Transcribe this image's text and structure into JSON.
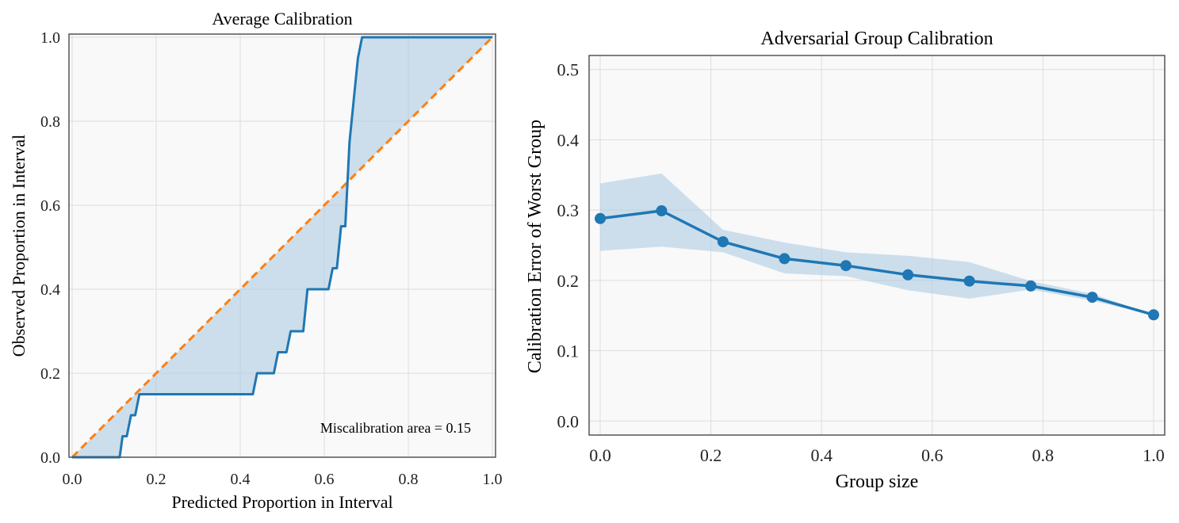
{
  "chart_data": [
    {
      "type": "line",
      "title": "Average Calibration",
      "xlabel": "Predicted Proportion in Interval",
      "ylabel": "Observed Proportion in Interval",
      "xlim": [
        0,
        1
      ],
      "ylim": [
        0,
        1
      ],
      "xticks": [
        "0.0",
        "0.2",
        "0.4",
        "0.6",
        "0.8",
        "1.0"
      ],
      "yticks": [
        "0.0",
        "0.2",
        "0.4",
        "0.6",
        "0.8",
        "1.0"
      ],
      "grid": true,
      "annotation": "Miscalibration area = 0.15",
      "ideal_line": {
        "x": [
          0,
          1
        ],
        "y": [
          0,
          1
        ],
        "style": "dashed",
        "color": "#ff7f0e"
      },
      "series": [
        {
          "x": [
            0,
            0.113,
            0.12,
            0.13,
            0.14,
            0.15,
            0.16,
            0.2,
            0.3,
            0.4,
            0.43,
            0.44,
            0.48,
            0.49,
            0.51,
            0.52,
            0.55,
            0.56,
            0.6,
            0.61,
            0.62,
            0.63,
            0.64,
            0.65,
            0.66,
            0.67,
            0.68,
            0.69,
            1.0
          ],
          "y": [
            0,
            0,
            0.05,
            0.05,
            0.1,
            0.1,
            0.15,
            0.15,
            0.15,
            0.15,
            0.15,
            0.2,
            0.2,
            0.25,
            0.25,
            0.3,
            0.3,
            0.4,
            0.4,
            0.4,
            0.45,
            0.45,
            0.55,
            0.55,
            0.75,
            0.85,
            0.95,
            1.0,
            1.0
          ],
          "color": "#1f77b4"
        }
      ],
      "fill_color": "#aecbe1"
    },
    {
      "type": "line",
      "title": "Adversarial Group Calibration",
      "xlabel": "Group size",
      "ylabel": "Calibration Error of Worst Group",
      "xlim": [
        -0.02,
        1.02
      ],
      "ylim": [
        -0.02,
        0.52
      ],
      "xticks": [
        "0.0",
        "0.2",
        "0.4",
        "0.6",
        "0.8",
        "1.0"
      ],
      "yticks": [
        "0.0",
        "0.1",
        "0.2",
        "0.3",
        "0.4",
        "0.5"
      ],
      "grid": true,
      "series": [
        {
          "x": [
            0,
            0.111,
            0.222,
            0.333,
            0.444,
            0.556,
            0.667,
            0.778,
            0.889,
            1.0
          ],
          "y": [
            0.288,
            0.299,
            0.255,
            0.231,
            0.221,
            0.208,
            0.199,
            0.192,
            0.176,
            0.151
          ],
          "lower": [
            0.242,
            0.248,
            0.24,
            0.21,
            0.206,
            0.186,
            0.174,
            0.187,
            0.171,
            0.151
          ],
          "upper": [
            0.338,
            0.352,
            0.272,
            0.254,
            0.24,
            0.235,
            0.226,
            0.199,
            0.181,
            0.151
          ],
          "color": "#1f77b4"
        }
      ],
      "band_color": "#aecbe1"
    }
  ]
}
